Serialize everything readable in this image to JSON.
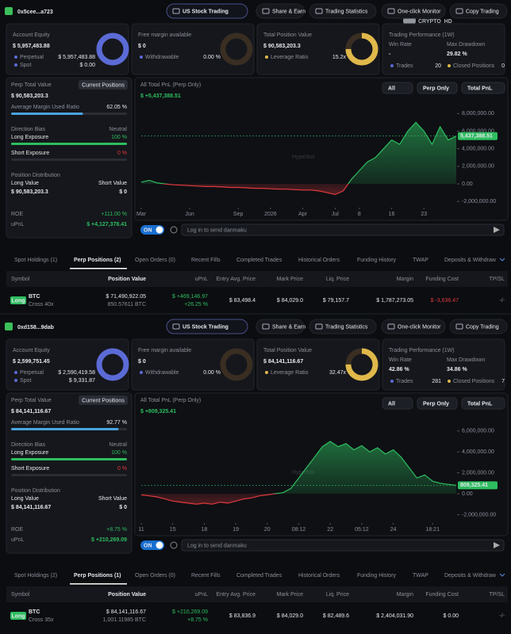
{
  "watermark": "CRYPTO_HD",
  "panels": [
    {
      "address": "0x5cee...a723",
      "nav": [
        "US Stock Trading",
        "Share & Earn",
        "Trading Statistics",
        "One-click Monitor",
        "Copy Trading"
      ],
      "equity": {
        "label": "Account Equity",
        "value": "$ 5,957,483.88",
        "rows": [
          [
            "Perpetual",
            "$ 5,957,483.88"
          ],
          [
            "Spot",
            "$ 0.00"
          ]
        ]
      },
      "margin": {
        "label": "Free margin available",
        "value": "$ 0",
        "rows": [
          [
            "Withdrawable",
            "0.00 %"
          ]
        ]
      },
      "position": {
        "label": "Total Position Value",
        "value": "$ 90,583,203.3",
        "rows": [
          [
            "Leverage Ratio",
            "15.2x"
          ]
        ]
      },
      "performance": {
        "label": "Trading Performance (1W)",
        "win_label": "Win Rate",
        "win": "-",
        "dd_label": "Max Drawdown",
        "dd": "29.82 %",
        "trades_label": "Trades",
        "trades": "20",
        "closed_label": "Closed Positions",
        "closed": "0"
      },
      "summary": {
        "perp_label": "Perp Total Value",
        "button": "Current Positions",
        "perp_value": "$ 90,583,203.3",
        "ratio_label": "Average Margin Used Ratio",
        "ratio": {
          "value": 62.05,
          "label": "62.05 %"
        },
        "bias_label": "Direction Bias",
        "bias": "Neutral",
        "long_label": "Long Exposure",
        "long": {
          "value": 100,
          "label": "100 %"
        },
        "short_label": "Short Exposure",
        "short": {
          "value": 0,
          "label": "0 %"
        },
        "dist_label": "Position Distribution",
        "long_value_label": "Long Value",
        "short_value_label": "Short Value",
        "long_value": "$ 90,583,203.3",
        "short_value": "$ 0",
        "roe_label": "ROE",
        "roe": "+111.00 %",
        "upnl_label": "uPnL",
        "upnl": "$ +4,127,378.41"
      },
      "chart": {
        "type": "line",
        "title": "All Total PnL (Perp Only)",
        "total": "$ +5,437,388.51",
        "filters": [
          "All",
          "Perp Only",
          "Total PnL"
        ],
        "watermark": "Hyperbot",
        "current_label": "5,437,388.51",
        "ylim": [
          -2700000,
          9200000
        ],
        "yticks": [
          {
            "value": 8000000,
            "label": "8,000,000.00"
          },
          {
            "value": 6000000,
            "label": "6,000,000.00"
          },
          {
            "value": 4000000,
            "label": "4,000,000.00"
          },
          {
            "value": 2000000,
            "label": "2,000,000.00"
          },
          {
            "value": 0,
            "label": "0.00"
          },
          {
            "value": -2000000,
            "label": "-2,000,000.00"
          }
        ],
        "xlim": [
          0,
          39
        ],
        "xticks": [
          {
            "value": 0,
            "label": "Mar"
          },
          {
            "value": 6,
            "label": "Jun"
          },
          {
            "value": 12,
            "label": "Sep"
          },
          {
            "value": 16,
            "label": "2026"
          },
          {
            "value": 20,
            "label": "Apr"
          },
          {
            "value": 24,
            "label": "Jul"
          },
          {
            "value": 27,
            "label": "8"
          },
          {
            "value": 31,
            "label": "16"
          },
          {
            "value": 35,
            "label": "23"
          }
        ],
        "values": [
          200000,
          400000,
          100000,
          0,
          -100000,
          -150000,
          -200000,
          -250000,
          -300000,
          -300000,
          -350000,
          -400000,
          -400000,
          -450000,
          -500000,
          -500000,
          -550000,
          -600000,
          -600000,
          -650000,
          -700000,
          -700000,
          -800000,
          -1000000,
          -1200000,
          -800000,
          500000,
          1500000,
          2500000,
          3000000,
          4000000,
          5000000,
          4500000,
          6000000,
          7000000,
          6000000,
          4500000,
          6500000,
          5000000,
          5437388.51
        ]
      },
      "toggle": "ON",
      "danmaku": "Log in to send danmaku",
      "tabs": [
        "Spot Holdings (1)",
        "Perp Positions (2)",
        "Open Orders (0)",
        "Recent Fills",
        "Completed Trades",
        "Historical Orders",
        "Funding History",
        "TWAP",
        "Deposits & Withdraw"
      ],
      "columns": [
        "Symbol",
        "Position Value",
        "uPnL",
        "Entry Avg. Price",
        "Mark Price",
        "Liq. Price",
        "Margin",
        "Funding Cost",
        "TP/SL"
      ],
      "row": {
        "side": "Long",
        "symbol": "BTC",
        "mode": "Cross 40x",
        "value": "$ 71,490,922.05",
        "size": "850.57611 BTC",
        "upnl": "$ +469,146.97",
        "upnl_pct": "+26.25 %",
        "entry": "$ 83,498.4",
        "mark": "$ 84,029.0",
        "liq": "$ 79,157.7",
        "margin": "$ 1,787,273.05",
        "funding": "$ -3,636.47",
        "tpsl": "-/-"
      }
    },
    {
      "address": "0xd158...9dab",
      "nav": [
        "US Stock Trading",
        "Share & Earn",
        "Trading Statistics",
        "One-click Monitor",
        "Copy Trading"
      ],
      "equity": {
        "label": "Account Equity",
        "value": "$ 2,599,751.45",
        "rows": [
          [
            "Perpetual",
            "$ 2,590,419.58"
          ],
          [
            "Spot",
            "$ 9,331.87"
          ]
        ]
      },
      "margin": {
        "label": "Free margin available",
        "value": "$ 0",
        "rows": [
          [
            "Withdrawable",
            "0.00 %"
          ]
        ]
      },
      "position": {
        "label": "Total Position Value",
        "value": "$ 84,141,116.67",
        "rows": [
          [
            "Leverage Ratio",
            "32.47x"
          ]
        ]
      },
      "performance": {
        "label": "Trading Performance (1W)",
        "win_label": "Win Rate",
        "win": "42.86 %",
        "dd_label": "Max Drawdown",
        "dd": "34.86 %",
        "trades_label": "Trades",
        "trades": "281",
        "closed_label": "Closed Positions",
        "closed": "7"
      },
      "summary": {
        "perp_label": "Perp Total Value",
        "button": "Current Positions",
        "perp_value": "$ 84,141,116.67",
        "ratio_label": "Average Margin Used Ratio",
        "ratio": {
          "value": 92.77,
          "label": "92.77 %"
        },
        "bias_label": "Direction Bias",
        "bias": "Neutral",
        "long_label": "Long Exposure",
        "long": {
          "value": 100,
          "label": "100 %"
        },
        "short_label": "Short Exposure",
        "short": {
          "value": 0,
          "label": "0 %"
        },
        "dist_label": "Position Distribution",
        "long_value_label": "Long Value",
        "short_value_label": "Short Value",
        "long_value": "$ 84,141,116.67",
        "short_value": "$ 0",
        "roe_label": "ROE",
        "roe": "+8.75 %",
        "upnl_label": "uPnL",
        "upnl": "$ +210,269.09"
      },
      "chart": {
        "type": "line",
        "title": "All Total PnL (Perp Only)",
        "total": "$ +809,325.41",
        "filters": [
          "All",
          "Perp Only",
          "Total PnL"
        ],
        "watermark": "Hyperbot",
        "current_label": "809,325.41",
        "ylim": [
          -2800000,
          7200000
        ],
        "yticks": [
          {
            "value": 6000000,
            "label": "6,000,000.00"
          },
          {
            "value": 4000000,
            "label": "4,000,000.00"
          },
          {
            "value": 2000000,
            "label": "2,000,000.00"
          },
          {
            "value": 0,
            "label": "0.00"
          },
          {
            "value": -2000000,
            "label": "-2,000,000.00"
          }
        ],
        "xlim": [
          0,
          40
        ],
        "xticks": [
          {
            "value": 0,
            "label": "11"
          },
          {
            "value": 4,
            "label": "15"
          },
          {
            "value": 8,
            "label": "18"
          },
          {
            "value": 12,
            "label": "19"
          },
          {
            "value": 16,
            "label": "20"
          },
          {
            "value": 20,
            "label": "08:12"
          },
          {
            "value": 24,
            "label": "22"
          },
          {
            "value": 28,
            "label": "05:12"
          },
          {
            "value": 32,
            "label": "24"
          },
          {
            "value": 37,
            "label": "18:21"
          }
        ],
        "values": [
          -100000,
          -200000,
          -300000,
          -500000,
          -700000,
          -800000,
          -900000,
          -1000000,
          -900000,
          -1000000,
          -800000,
          -900000,
          -700000,
          -500000,
          -400000,
          -200000,
          -100000,
          0,
          100000,
          500000,
          1500000,
          2500000,
          3500000,
          4500000,
          5000000,
          4500000,
          4800000,
          4200000,
          4600000,
          4000000,
          4400000,
          3800000,
          4200000,
          3500000,
          2500000,
          1500000,
          1800000,
          1200000,
          1000000,
          900000,
          809325.41
        ]
      },
      "toggle": "ON",
      "danmaku": "Log in to send danmaku",
      "tabs": [
        "Spot Holdings (2)",
        "Perp Positions (1)",
        "Open Orders (0)",
        "Recent Fills",
        "Completed Trades",
        "Historical Orders",
        "Funding History",
        "TWAP",
        "Deposits & Withdraw"
      ],
      "columns": [
        "Symbol",
        "Position Value",
        "uPnL",
        "Entry Avg. Price",
        "Mark Price",
        "Liq. Price",
        "Margin",
        "Funding Cost",
        "TP/SL"
      ],
      "row": {
        "side": "Long",
        "symbol": "BTC",
        "mode": "Cross 35x",
        "value": "$ 84,141,116.67",
        "size": "1,001.11985 BTC",
        "upnl": "$ +210,269.09",
        "upnl_pct": "+8.75 %",
        "entry": "$ 83,836.9",
        "mark": "$ 84,029.0",
        "liq": "$ 82,489.6",
        "margin": "$ 2,404,031.90",
        "funding": "$ 0.00",
        "tpsl": "-/-"
      }
    }
  ]
}
